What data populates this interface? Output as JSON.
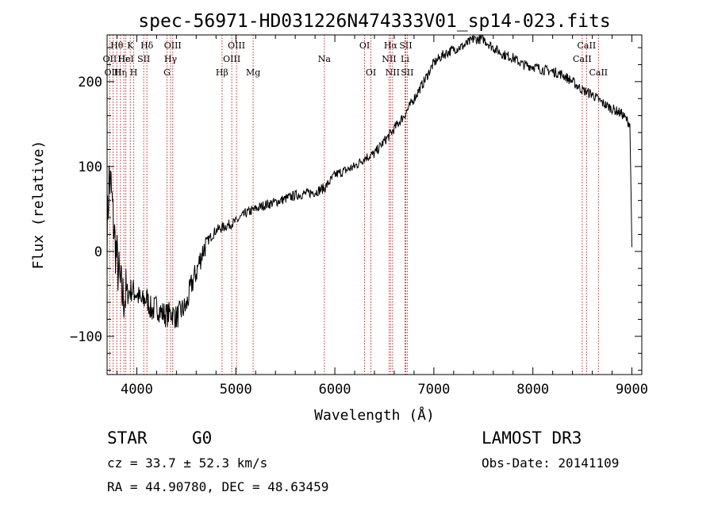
{
  "chart_data": {
    "type": "line",
    "title": "spec-56971-HD031226N474333V01_sp14-023.fits",
    "xlabel": "Wavelength (Å)",
    "ylabel": "Flux (relative)",
    "xlim": [
      3700,
      9100
    ],
    "ylim": [
      -145,
      255
    ],
    "xticks": [
      4000,
      5000,
      6000,
      7000,
      8000,
      9000
    ],
    "yticks": [
      -100,
      0,
      100,
      200
    ],
    "series": [
      {
        "name": "flux",
        "x": [
          3700,
          3720,
          3740,
          3760,
          3780,
          3800,
          3830,
          3860,
          3900,
          3950,
          4000,
          4050,
          4100,
          4150,
          4200,
          4250,
          4300,
          4350,
          4400,
          4450,
          4500,
          4550,
          4600,
          4650,
          4700,
          4800,
          4900,
          5000,
          5100,
          5200,
          5300,
          5400,
          5500,
          5600,
          5700,
          5800,
          5900,
          6000,
          6100,
          6200,
          6300,
          6400,
          6500,
          6560,
          6600,
          6700,
          6800,
          6900,
          7000,
          7100,
          7200,
          7300,
          7400,
          7500,
          7600,
          7700,
          7800,
          7900,
          8000,
          8100,
          8200,
          8300,
          8400,
          8500,
          8600,
          8700,
          8800,
          8900,
          8980,
          9000
        ],
        "y": [
          20,
          85,
          75,
          40,
          10,
          -10,
          -40,
          -55,
          -50,
          -45,
          -50,
          -60,
          -55,
          -70,
          -65,
          -72,
          -75,
          -72,
          -78,
          -70,
          -65,
          -40,
          -25,
          -5,
          10,
          25,
          30,
          35,
          45,
          50,
          55,
          58,
          62,
          66,
          68,
          70,
          75,
          90,
          95,
          100,
          110,
          115,
          130,
          138,
          145,
          160,
          180,
          200,
          222,
          232,
          238,
          242,
          250,
          250,
          240,
          232,
          228,
          220,
          218,
          214,
          212,
          208,
          200,
          190,
          185,
          175,
          168,
          162,
          150,
          5
        ]
      }
    ],
    "lines": [
      {
        "name": "Hθ",
        "x": 3798,
        "row": 0
      },
      {
        "name": "OII",
        "x": 3727,
        "row": 1
      },
      {
        "name": "OIII",
        "x": 3760,
        "row": 2
      },
      {
        "name": "Hη",
        "x": 3835,
        "row": 2
      },
      {
        "name": "Hε",
        "x": 3870,
        "row": 1
      },
      {
        "name": "K",
        "x": 3934,
        "row": 0
      },
      {
        "name": "HeI",
        "x": 3889,
        "row": 1
      },
      {
        "name": "H",
        "x": 3969,
        "row": 2
      },
      {
        "name": "Hδ",
        "x": 4102,
        "row": 0
      },
      {
        "name": "SII",
        "x": 4070,
        "row": 1
      },
      {
        "name": "OIII",
        "x": 4363,
        "row": 0
      },
      {
        "name": "Hγ",
        "x": 4341,
        "row": 1
      },
      {
        "name": "G",
        "x": 4305,
        "row": 2
      },
      {
        "name": "Hβ",
        "x": 4861,
        "row": 2
      },
      {
        "name": "OIII",
        "x": 5007,
        "row": 0
      },
      {
        "name": "OIII",
        "x": 4959,
        "row": 1
      },
      {
        "name": "Mg",
        "x": 5175,
        "row": 2
      },
      {
        "name": "Na",
        "x": 5894,
        "row": 1
      },
      {
        "name": "OI",
        "x": 6300,
        "row": 0
      },
      {
        "name": "OI",
        "x": 6364,
        "row": 2
      },
      {
        "name": "Hα",
        "x": 6563,
        "row": 0
      },
      {
        "name": "NII",
        "x": 6548,
        "row": 1
      },
      {
        "name": "NII",
        "x": 6583,
        "row": 2
      },
      {
        "name": "SII",
        "x": 6716,
        "row": 0
      },
      {
        "name": "Li",
        "x": 6708,
        "row": 1
      },
      {
        "name": "SII",
        "x": 6731,
        "row": 2
      },
      {
        "name": "CaII",
        "x": 8542,
        "row": 0
      },
      {
        "name": "CaII",
        "x": 8498,
        "row": 1
      },
      {
        "name": "CaII",
        "x": 8662,
        "row": 2
      }
    ],
    "line_color": "#c62828"
  },
  "info": {
    "object_class": "STAR",
    "subclass": "G0",
    "survey": "LAMOST DR3",
    "redshift": "cz = 33.7 ± 52.3 km/s",
    "obs_date": "Obs-Date: 20141109",
    "coords": "RA =  44.90780, DEC =  48.63459"
  }
}
